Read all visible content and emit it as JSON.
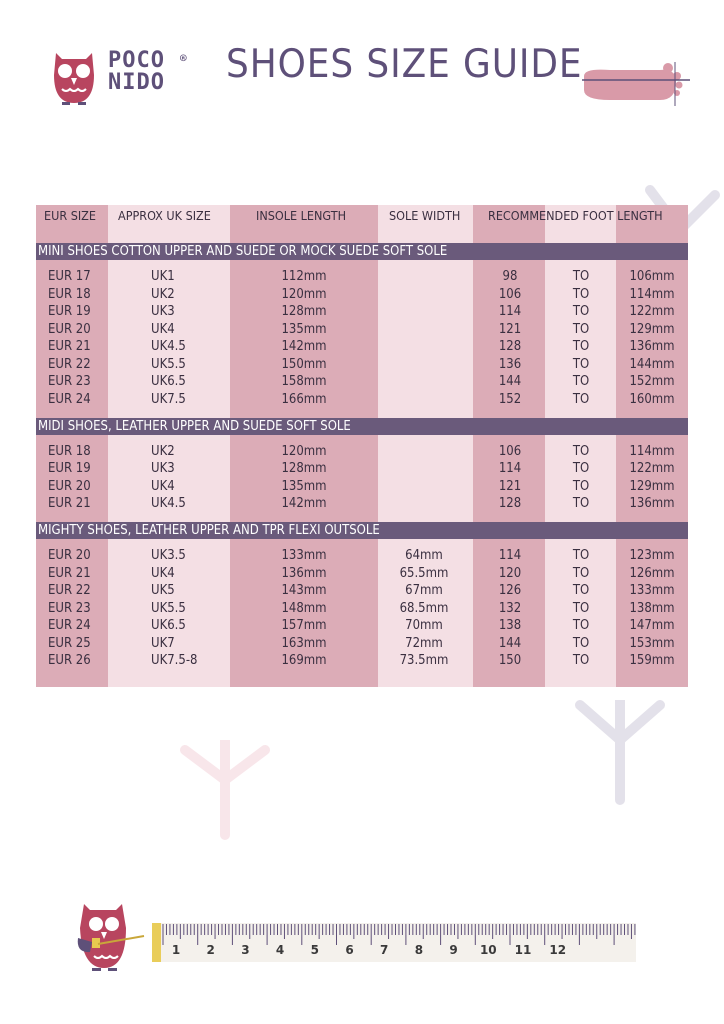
{
  "brand": {
    "line1": "POCO",
    "line2": "NIDO",
    "reg": "®"
  },
  "title": "SHOES SIZE GUIDE",
  "colors": {
    "dark_column": "#dcacb7",
    "light_column": "#f4dfe4",
    "section_band": "#6a5a7b",
    "title": "#5e5079",
    "owl": "#b8455f"
  },
  "table": {
    "headers": [
      "EUR SIZE",
      "APPROX UK SIZE",
      "INSOLE LENGTH",
      "SOLE WIDTH",
      "RECOMMENDED FOOT LENGTH"
    ],
    "sections": [
      {
        "title": "MINI SHOES COTTON UPPER AND SUEDE OR MOCK SUEDE SOFT SOLE",
        "rows": [
          [
            "EUR 17",
            "UK1",
            "112mm",
            "",
            "98",
            "TO",
            "106mm"
          ],
          [
            "EUR 18",
            "UK2",
            "120mm",
            "",
            "106",
            "TO",
            "114mm"
          ],
          [
            "EUR 19",
            "UK3",
            "128mm",
            "",
            "114",
            "TO",
            "122mm"
          ],
          [
            "EUR 20",
            "UK4",
            "135mm",
            "",
            "121",
            "TO",
            "129mm"
          ],
          [
            "EUR 21",
            "UK4.5",
            "142mm",
            "",
            "128",
            "TO",
            "136mm"
          ],
          [
            "EUR 22",
            "UK5.5",
            "150mm",
            "",
            "136",
            "TO",
            "144mm"
          ],
          [
            "EUR 23",
            "UK6.5",
            "158mm",
            "",
            "144",
            "TO",
            "152mm"
          ],
          [
            "EUR 24",
            "UK7.5",
            "166mm",
            "",
            "152",
            "TO",
            "160mm"
          ]
        ]
      },
      {
        "title": "MIDI SHOES, LEATHER UPPER AND SUEDE SOFT SOLE",
        "rows": [
          [
            "EUR 18",
            "UK2",
            "120mm",
            "",
            "106",
            "TO",
            "114mm"
          ],
          [
            "EUR 19",
            "UK3",
            "128mm",
            "",
            "114",
            "TO",
            "122mm"
          ],
          [
            "EUR 20",
            "UK4",
            "135mm",
            "",
            "121",
            "TO",
            "129mm"
          ],
          [
            "EUR 21",
            "UK4.5",
            "142mm",
            "",
            "128",
            "TO",
            "136mm"
          ]
        ]
      },
      {
        "title": "MIGHTY SHOES, LEATHER UPPER AND TPR FLEXI OUTSOLE",
        "rows": [
          [
            "EUR 20",
            "UK3.5",
            "133mm",
            "64mm",
            "114",
            "TO",
            "123mm"
          ],
          [
            "EUR 21",
            "UK4",
            "136mm",
            "65.5mm",
            "120",
            "TO",
            "126mm"
          ],
          [
            "EUR 22",
            "UK5",
            "143mm",
            "67mm",
            "126",
            "TO",
            "133mm"
          ],
          [
            "EUR 23",
            "UK5.5",
            "148mm",
            "68.5mm",
            "132",
            "TO",
            "138mm"
          ],
          [
            "EUR 24",
            "UK6.5",
            "157mm",
            "70mm",
            "138",
            "TO",
            "147mm"
          ],
          [
            "EUR 25",
            "UK7",
            "163mm",
            "72mm",
            "144",
            "TO",
            "153mm"
          ],
          [
            "EUR 26",
            "UK7.5-8",
            "169mm",
            "73.5mm",
            "150",
            "TO",
            "159mm"
          ]
        ]
      }
    ]
  },
  "ruler": {
    "numbers": [
      "1",
      "2",
      "3",
      "4",
      "5",
      "6",
      "7",
      "8",
      "9",
      "10",
      "11",
      "12"
    ]
  },
  "icons": {
    "logo": "owl-icon",
    "header": "foot-ruler-icon",
    "footer": "owl-measuring-tape-icon"
  }
}
